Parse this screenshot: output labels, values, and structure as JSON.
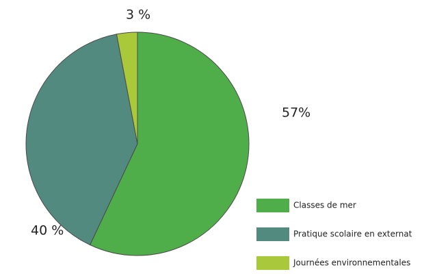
{
  "chart_data": {
    "type": "pie",
    "categories": [
      "Classes de mer",
      "Pratique scolaire en externat",
      "Journées environnementales"
    ],
    "values": [
      57,
      40,
      3
    ],
    "value_labels": [
      "57%",
      "40 %",
      "3 %"
    ],
    "colors": [
      "#4fae4a",
      "#528a80",
      "#a9c93b"
    ]
  }
}
